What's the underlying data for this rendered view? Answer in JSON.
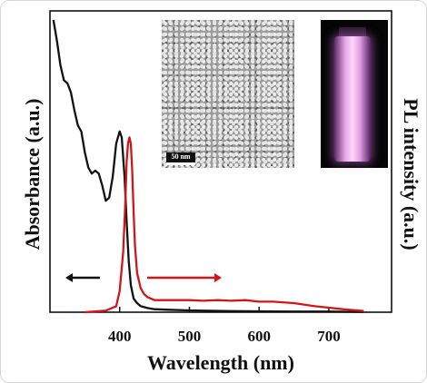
{
  "chart_data": {
    "type": "line",
    "xlabel": "Wavelength (nm)",
    "ylabel_left": "Absorbance (a.u.)",
    "ylabel_right": "PL intensity (a.u.)",
    "xlim": [
      300,
      790
    ],
    "ylim": [
      0,
      1
    ],
    "xticks": [
      400,
      500,
      600,
      700
    ],
    "grid": false,
    "series": [
      {
        "color": "#111111",
        "x": [
          305,
          310,
          315,
          320,
          325,
          330,
          335,
          340,
          345,
          350,
          355,
          360,
          365,
          370,
          375,
          380,
          385,
          390,
          395,
          400,
          403,
          407,
          410,
          413,
          416,
          420,
          425,
          430,
          440,
          450,
          470,
          500,
          550,
          600,
          650,
          700,
          750
        ],
        "y": [
          0.97,
          0.9,
          0.82,
          0.77,
          0.76,
          0.73,
          0.67,
          0.62,
          0.6,
          0.53,
          0.48,
          0.46,
          0.47,
          0.46,
          0.42,
          0.37,
          0.38,
          0.45,
          0.56,
          0.6,
          0.58,
          0.45,
          0.3,
          0.17,
          0.09,
          0.045,
          0.03,
          0.02,
          0.014,
          0.01,
          0.008,
          0.006,
          0.004,
          0.003,
          0.002,
          0.002,
          0.001
        ]
      },
      {
        "color": "#d0161b",
        "x": [
          350,
          380,
          395,
          400,
          405,
          408,
          410,
          412,
          414,
          416,
          418,
          420,
          422,
          425,
          430,
          435,
          440,
          450,
          470,
          500,
          520,
          540,
          560,
          580,
          600,
          620,
          650,
          680,
          700,
          720,
          750
        ],
        "y": [
          0.0,
          0.005,
          0.02,
          0.07,
          0.2,
          0.36,
          0.5,
          0.56,
          0.58,
          0.56,
          0.47,
          0.33,
          0.22,
          0.13,
          0.08,
          0.06,
          0.05,
          0.04,
          0.04,
          0.04,
          0.038,
          0.04,
          0.038,
          0.04,
          0.035,
          0.035,
          0.03,
          0.02,
          0.015,
          0.01,
          0.004
        ]
      }
    ],
    "arrows": [
      {
        "direction": "left",
        "color": "#111111"
      },
      {
        "direction": "right",
        "color": "#d0161b"
      }
    ]
  },
  "insets": {
    "tem_image": {
      "scale_bar_label": "50 nm"
    },
    "photo": {
      "subject": "glowing vial"
    }
  }
}
